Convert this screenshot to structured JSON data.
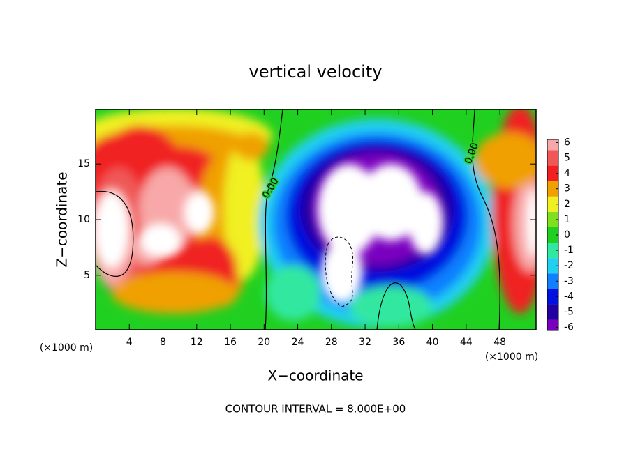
{
  "chart_data": {
    "type": "contour",
    "title": "vertical velocity",
    "xlabel": "X−coordinate",
    "ylabel": "Z−coordinate",
    "x_unit_labels": [
      "(×1000 m)",
      "(×1000 m)"
    ],
    "xlim": [
      0,
      52.3
    ],
    "xticks": [
      4,
      8,
      12,
      16,
      20,
      24,
      28,
      32,
      36,
      40,
      44,
      48
    ],
    "ylim": [
      0.1,
      19.9
    ],
    "yticks": [
      5,
      10,
      15
    ],
    "contour_labels": [
      "0.00",
      "0.00"
    ],
    "note": "CONTOUR INTERVAL = 8.000E+00",
    "colorbar": {
      "clim": [
        -6.2,
        6.2
      ],
      "ticks": [
        -6,
        -5,
        -4,
        -3,
        -2,
        -1,
        0,
        1,
        2,
        3,
        4,
        5,
        6
      ],
      "colors": [
        "#7a00c0",
        "#2000a0",
        "#0010e0",
        "#1080ff",
        "#20d0f0",
        "#30e8a0",
        "#20d020",
        "#80e020",
        "#f0f020",
        "#f0a000",
        "#f02020",
        "#f05858",
        "#f8a8a8"
      ]
    }
  }
}
